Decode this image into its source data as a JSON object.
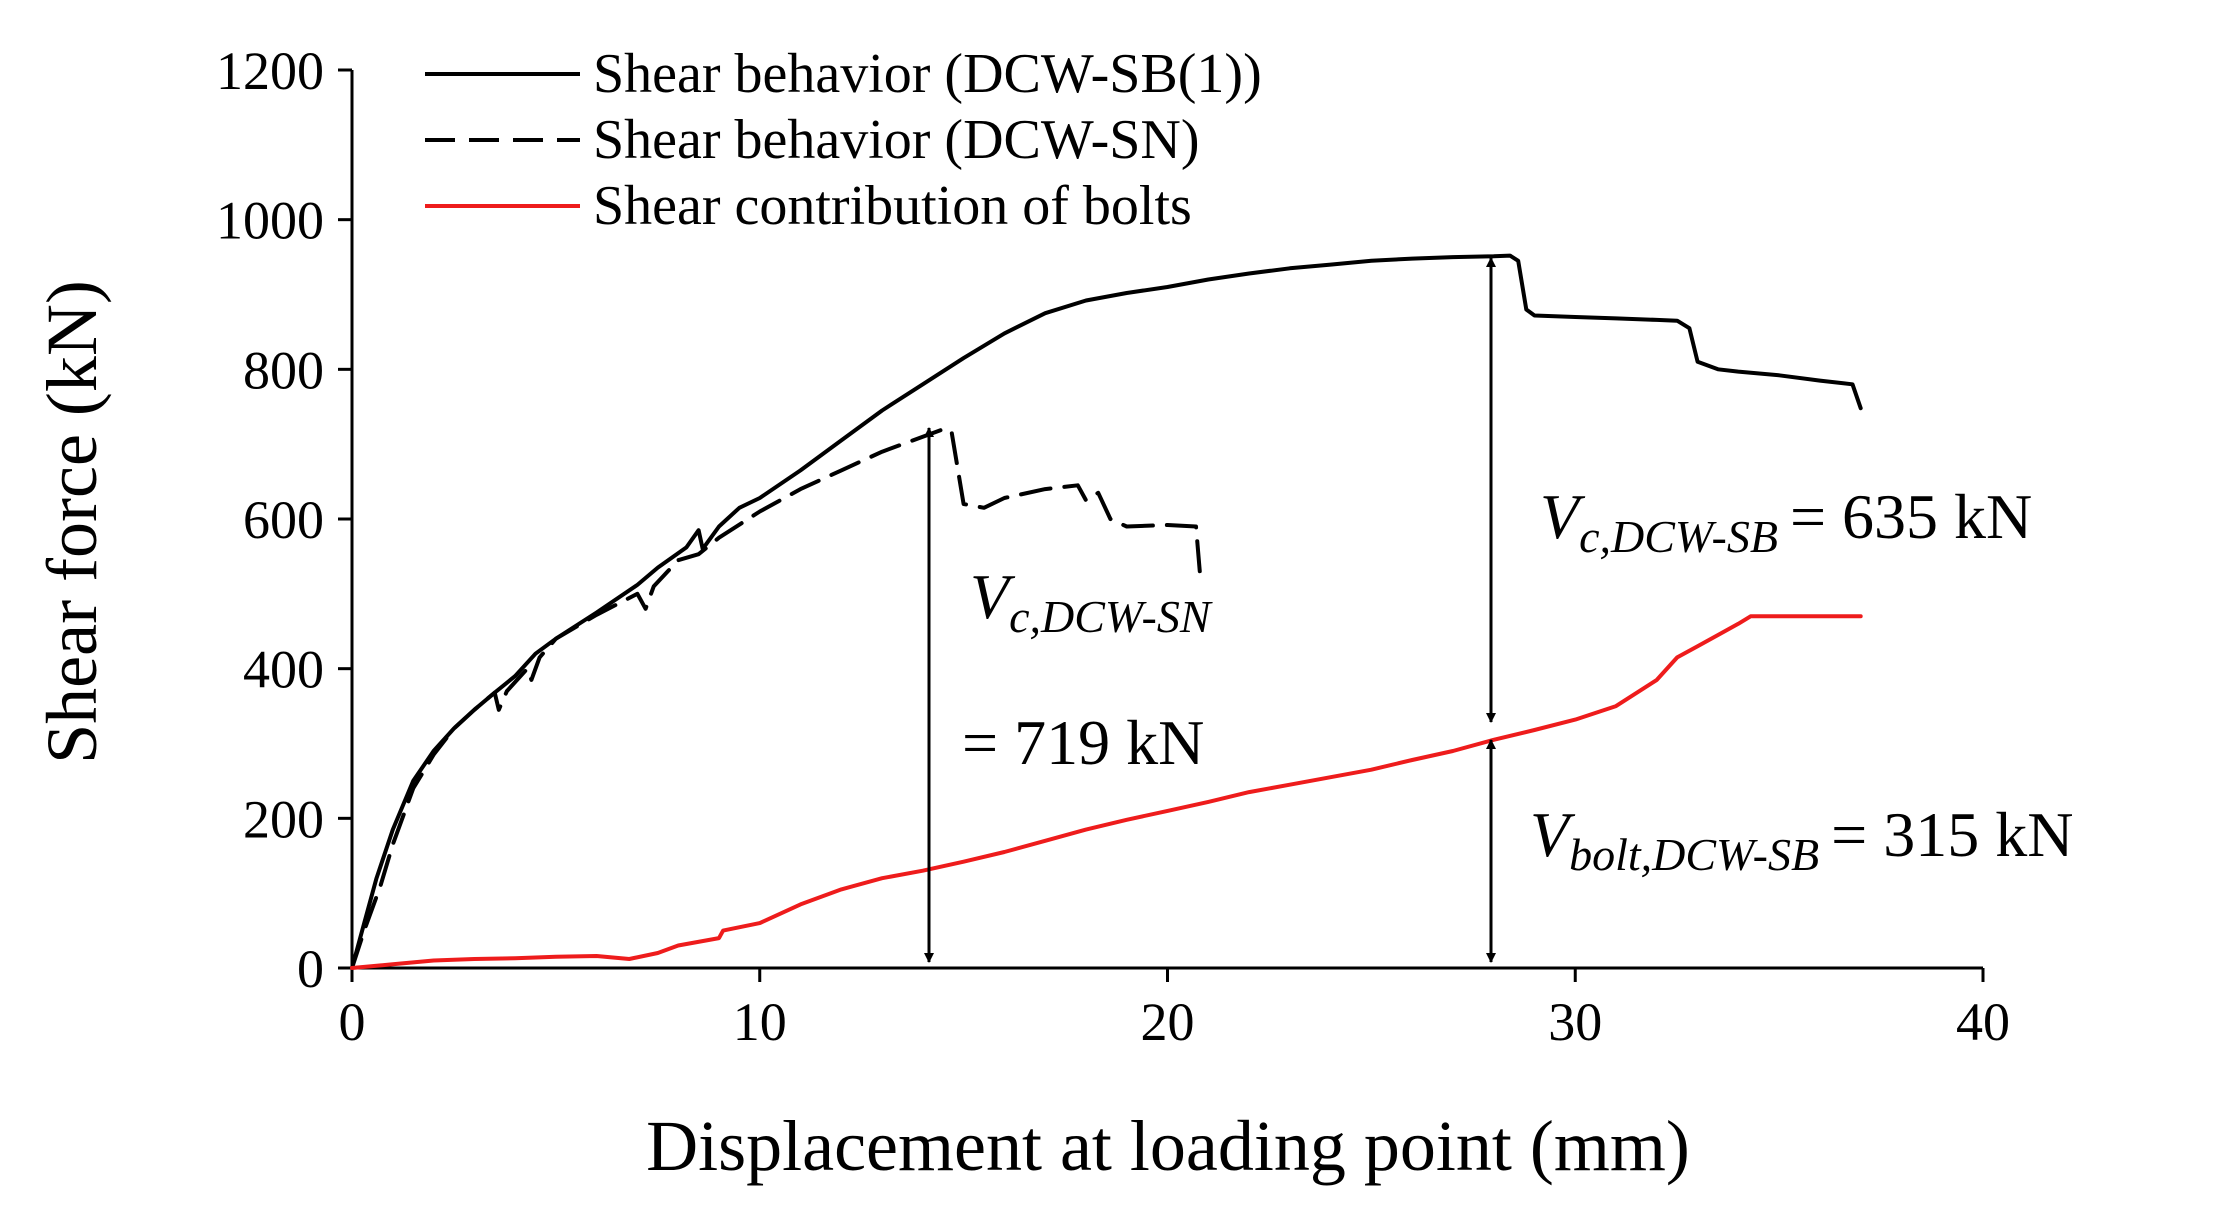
{
  "chart_data": {
    "type": "line",
    "xlabel": "Displacement at loading point (mm)",
    "ylabel": "Shear force (kN)",
    "xlim": [
      0,
      40
    ],
    "ylim": [
      0,
      1200
    ],
    "xticks": [
      0,
      10,
      20,
      30,
      40
    ],
    "yticks": [
      0,
      200,
      400,
      600,
      800,
      1000,
      1200
    ],
    "grid": false,
    "legend_position": "top-left",
    "colors": {
      "black": "#000000",
      "red": "#ee1c1c"
    },
    "series": [
      {
        "name": "Shear behavior (DCW-SB(1))",
        "style": "solid",
        "color": "#000000",
        "points": [
          [
            0,
            0
          ],
          [
            0.3,
            60
          ],
          [
            0.6,
            120
          ],
          [
            1,
            185
          ],
          [
            1.5,
            250
          ],
          [
            2,
            290
          ],
          [
            2.5,
            320
          ],
          [
            3,
            345
          ],
          [
            3.5,
            368
          ],
          [
            4,
            390
          ],
          [
            4.5,
            420
          ],
          [
            5,
            440
          ],
          [
            6,
            475
          ],
          [
            7,
            512
          ],
          [
            7.5,
            535
          ],
          [
            8.2,
            562
          ],
          [
            8.5,
            585
          ],
          [
            8.6,
            560
          ],
          [
            9,
            590
          ],
          [
            9.5,
            615
          ],
          [
            10,
            628
          ],
          [
            11,
            665
          ],
          [
            12,
            705
          ],
          [
            13,
            745
          ],
          [
            14,
            780
          ],
          [
            15,
            815
          ],
          [
            16,
            848
          ],
          [
            17,
            875
          ],
          [
            18,
            892
          ],
          [
            19,
            902
          ],
          [
            20,
            910
          ],
          [
            21,
            920
          ],
          [
            22,
            928
          ],
          [
            23,
            935
          ],
          [
            24,
            940
          ],
          [
            25,
            945
          ],
          [
            26,
            948
          ],
          [
            27,
            950
          ],
          [
            28,
            951
          ],
          [
            28.4,
            952
          ],
          [
            28.6,
            945
          ],
          [
            28.8,
            880
          ],
          [
            29,
            872
          ],
          [
            30,
            870
          ],
          [
            31,
            868
          ],
          [
            32,
            866
          ],
          [
            32.5,
            865
          ],
          [
            32.8,
            855
          ],
          [
            33,
            810
          ],
          [
            33.5,
            800
          ],
          [
            34,
            797
          ],
          [
            35,
            792
          ],
          [
            36,
            785
          ],
          [
            36.8,
            780
          ],
          [
            37,
            748
          ]
        ]
      },
      {
        "name": "Shear behavior (DCW-SN)",
        "style": "dashed",
        "color": "#000000",
        "points": [
          [
            0,
            0
          ],
          [
            0.3,
            50
          ],
          [
            0.7,
            110
          ],
          [
            1,
            165
          ],
          [
            1.5,
            240
          ],
          [
            2,
            285
          ],
          [
            2.5,
            320
          ],
          [
            3,
            345
          ],
          [
            3.5,
            368
          ],
          [
            3.6,
            345
          ],
          [
            3.8,
            370
          ],
          [
            4.3,
            400
          ],
          [
            4.4,
            385
          ],
          [
            4.6,
            415
          ],
          [
            5,
            440
          ],
          [
            6,
            472
          ],
          [
            7,
            500
          ],
          [
            7.2,
            480
          ],
          [
            7.4,
            510
          ],
          [
            8,
            545
          ],
          [
            8.5,
            553
          ],
          [
            9,
            575
          ],
          [
            10,
            610
          ],
          [
            11,
            640
          ],
          [
            12,
            665
          ],
          [
            13,
            690
          ],
          [
            14,
            710
          ],
          [
            14.5,
            720
          ],
          [
            14.7,
            718
          ],
          [
            15,
            620
          ],
          [
            15.5,
            615
          ],
          [
            16,
            628
          ],
          [
            17,
            640
          ],
          [
            17.8,
            645
          ],
          [
            18,
            625
          ],
          [
            18.3,
            635
          ],
          [
            18.6,
            600
          ],
          [
            19,
            590
          ],
          [
            20,
            592
          ],
          [
            20.7,
            590
          ],
          [
            20.8,
            525
          ]
        ]
      },
      {
        "name": "Shear contribution of bolts",
        "style": "solid",
        "color": "#ee1c1c",
        "points": [
          [
            0,
            0
          ],
          [
            1,
            5
          ],
          [
            2,
            10
          ],
          [
            3,
            12
          ],
          [
            4,
            13
          ],
          [
            5,
            15
          ],
          [
            6,
            16
          ],
          [
            6.8,
            12
          ],
          [
            7.5,
            20
          ],
          [
            8,
            30
          ],
          [
            9,
            40
          ],
          [
            9.1,
            50
          ],
          [
            10,
            60
          ],
          [
            11,
            85
          ],
          [
            12,
            105
          ],
          [
            13,
            120
          ],
          [
            14,
            130
          ],
          [
            15,
            142
          ],
          [
            16,
            155
          ],
          [
            17,
            170
          ],
          [
            18,
            185
          ],
          [
            19,
            198
          ],
          [
            20,
            210
          ],
          [
            21,
            222
          ],
          [
            22,
            235
          ],
          [
            23,
            245
          ],
          [
            24,
            255
          ],
          [
            25,
            265
          ],
          [
            26,
            278
          ],
          [
            27,
            290
          ],
          [
            28,
            305
          ],
          [
            29,
            318
          ],
          [
            30,
            332
          ],
          [
            31,
            350
          ],
          [
            32,
            385
          ],
          [
            32.5,
            415
          ],
          [
            33,
            430
          ],
          [
            33.5,
            445
          ],
          [
            34,
            460
          ],
          [
            34.3,
            470
          ],
          [
            35,
            470
          ],
          [
            36,
            470
          ],
          [
            37,
            470
          ]
        ]
      }
    ],
    "annotations": [
      {
        "symbol": "V",
        "subscript": "c,DCW-SN",
        "value": "= 719 kN"
      },
      {
        "symbol": "V",
        "subscript": "c,DCW-SB",
        "value": "= 635 kN"
      },
      {
        "symbol": "V",
        "subscript": "bolt,DCW-SB",
        "value": "= 315 kN"
      }
    ]
  }
}
